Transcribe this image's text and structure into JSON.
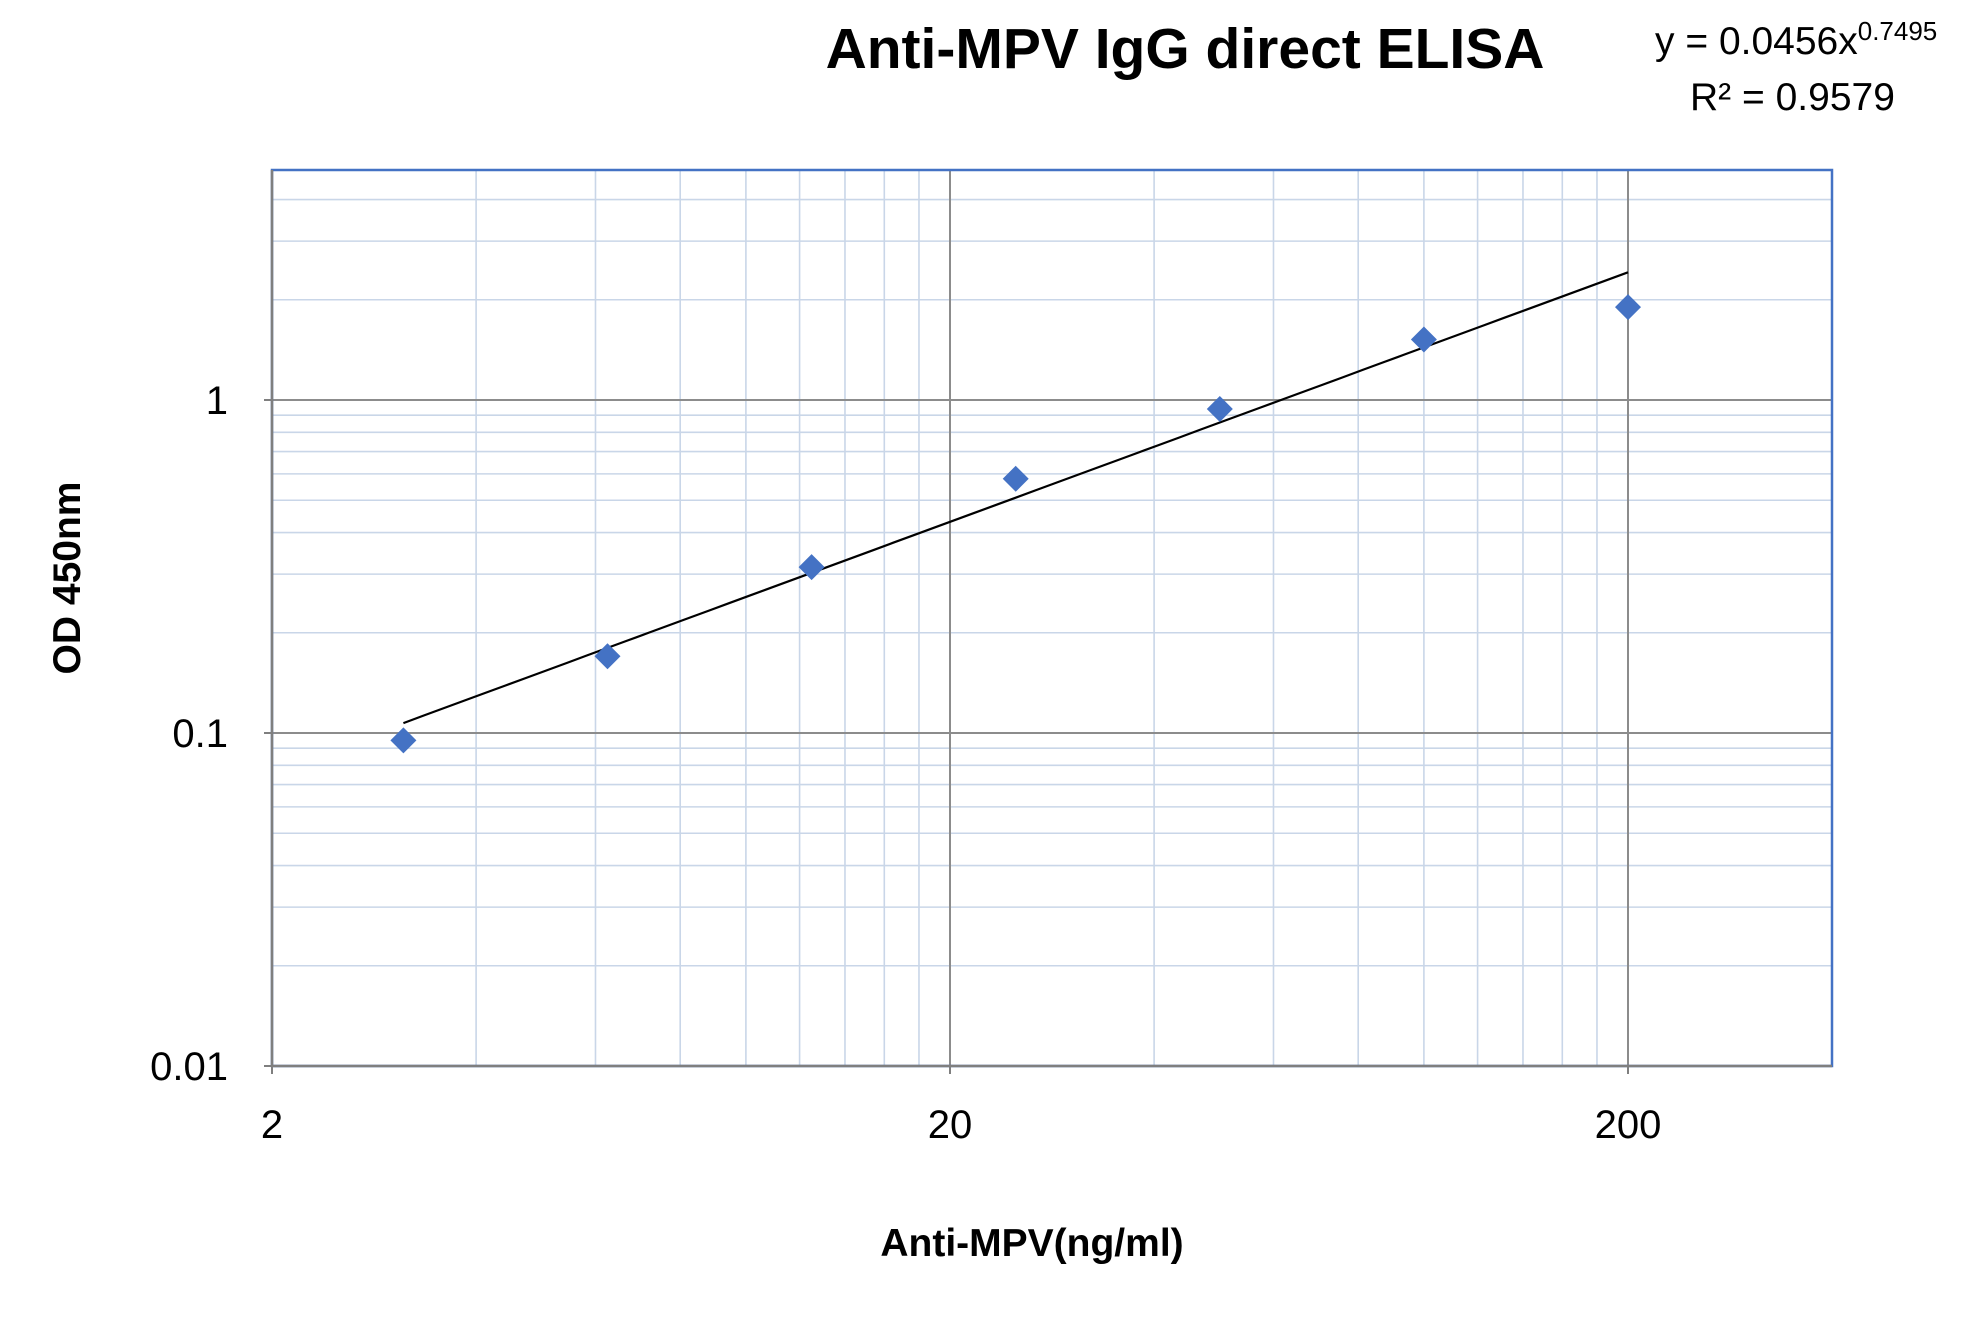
{
  "chart_data": {
    "type": "scatter",
    "title": "Anti-MPV IgG direct ELISA",
    "xlabel": "Anti-MPV(ng/ml)",
    "ylabel": "OD 450nm",
    "x_scale": "log",
    "y_scale": "log",
    "xlim": [
      2,
      400
    ],
    "ylim": [
      0.01,
      5
    ],
    "x_tick_labels": [
      "2",
      "20",
      "200"
    ],
    "y_tick_labels": [
      "0.01",
      "0.1",
      "1"
    ],
    "grid": true,
    "legend": "none",
    "series": [
      {
        "marker": "diamond",
        "color": "#4472C4",
        "x": [
          3.125,
          6.25,
          12.5,
          25,
          50,
          100,
          200
        ],
        "y": [
          0.095,
          0.17,
          0.315,
          0.58,
          0.94,
          1.52,
          1.9
        ]
      }
    ],
    "trendline": {
      "type": "power",
      "color": "#000000",
      "coefficient": 0.0456,
      "exponent": 0.7495,
      "x_range": [
        3.125,
        200
      ],
      "equation_prefix": "y = 0.0456x",
      "equation_exponent": "0.7495",
      "r_squared_label": "R² = 0.9579"
    },
    "colors": {
      "plot_border": "#4472C4",
      "major_grid": "#8C8C8C",
      "minor_grid": "#C9D6E8"
    }
  }
}
